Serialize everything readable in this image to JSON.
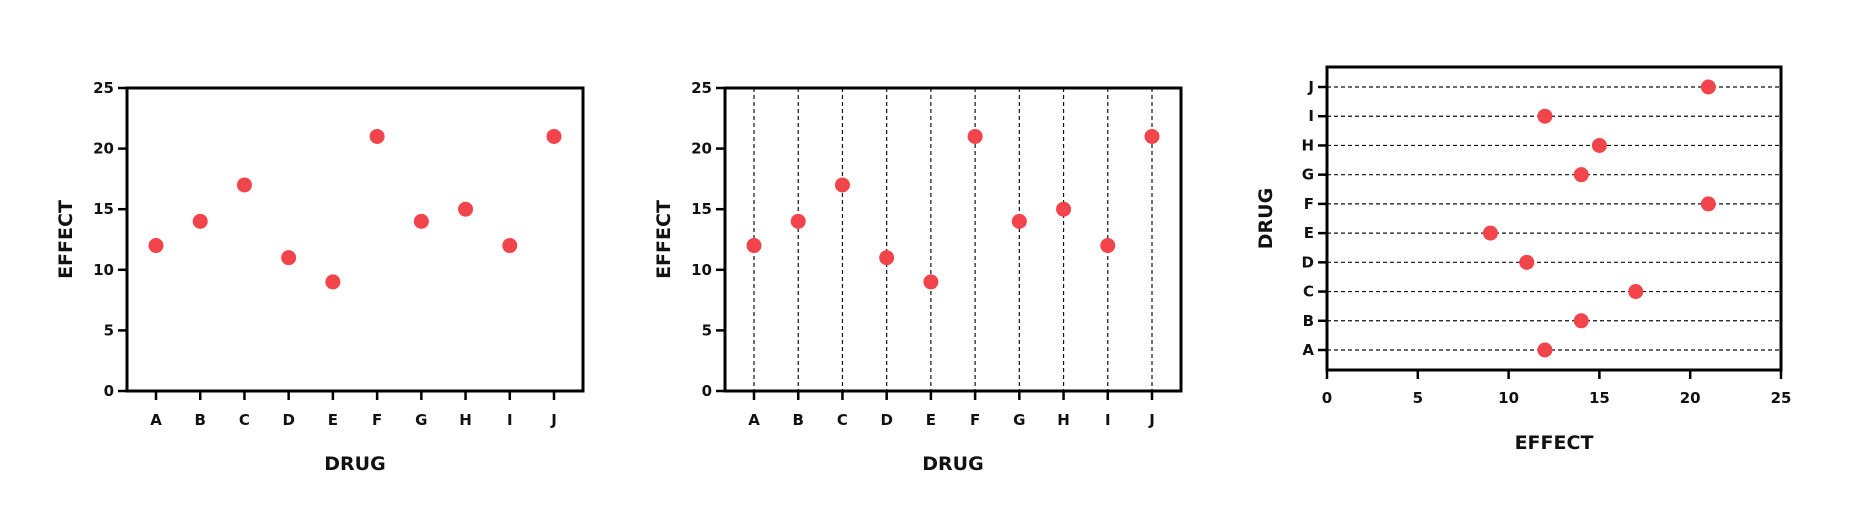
{
  "chart_data": [
    {
      "type": "scatter",
      "orientation": "vertical",
      "title": "",
      "xlabel": "DRUG",
      "ylabel": "EFFECT",
      "categories": [
        "A",
        "B",
        "C",
        "D",
        "E",
        "F",
        "G",
        "H",
        "I",
        "J"
      ],
      "values": [
        12,
        14,
        17,
        11,
        9,
        21,
        14,
        15,
        12,
        21
      ],
      "ylim": [
        0,
        25
      ],
      "yticks": [
        "0",
        "5",
        "10",
        "15",
        "20",
        "25"
      ],
      "grid": false,
      "marker_color": "#f2444b"
    },
    {
      "type": "scatter",
      "orientation": "vertical",
      "title": "",
      "xlabel": "DRUG",
      "ylabel": "EFFECT",
      "categories": [
        "A",
        "B",
        "C",
        "D",
        "E",
        "F",
        "G",
        "H",
        "I",
        "J"
      ],
      "values": [
        12,
        14,
        17,
        11,
        9,
        21,
        14,
        15,
        12,
        21
      ],
      "ylim": [
        0,
        25
      ],
      "yticks": [
        "0",
        "5",
        "10",
        "15",
        "20",
        "25"
      ],
      "grid": "vertical dashed",
      "marker_color": "#f2444b"
    },
    {
      "type": "scatter",
      "orientation": "horizontal",
      "title": "",
      "xlabel": "EFFECT",
      "ylabel": "DRUG",
      "categories": [
        "A",
        "B",
        "C",
        "D",
        "E",
        "F",
        "G",
        "H",
        "I",
        "J"
      ],
      "values": [
        12,
        14,
        17,
        11,
        9,
        21,
        14,
        15,
        12,
        21
      ],
      "xlim": [
        0,
        25
      ],
      "xticks": [
        "0",
        "5",
        "10",
        "15",
        "20",
        "25"
      ],
      "grid": "horizontal dashed",
      "marker_color": "#f2444b"
    }
  ]
}
